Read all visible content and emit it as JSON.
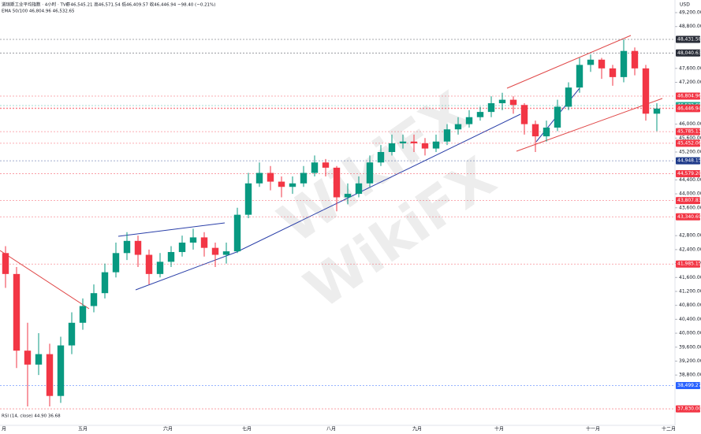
{
  "chart_data": {
    "type": "candlestick",
    "header": {
      "title": "道琼斯工业平均指数 · 4小时 · TVC",
      "ohlc": "开46,545.21 高46,571.54 低46,409.57 收46,446.94 −98.40 (−0.21%)"
    },
    "ema": "EMA 50/100  46,804.96  46,532.65",
    "rsi": "RSI (14, close)  44.90  36.68",
    "currency": "USD",
    "watermark": "WikiFX",
    "months": [
      "月",
      "五月",
      "六月",
      "七月",
      "八月",
      "九月",
      "十月",
      "十一月",
      "十二月"
    ],
    "up_color": "#089981",
    "down_color": "#f23645",
    "open": [
      42300,
      41700,
      39500,
      39100,
      39400,
      38200,
      39650,
      40300,
      40780,
      41150,
      41750,
      42300,
      42650,
      42250,
      41700,
      42050,
      42330,
      42600,
      42750,
      42450,
      42250,
      42350,
      43400,
      44300,
      44600,
      44350,
      44200,
      44300,
      44600,
      44900,
      44750,
      43900,
      44000,
      44300,
      44900,
      45200,
      45450,
      45500,
      45450,
      45300,
      45500,
      45850,
      46000,
      46200,
      46350,
      46600,
      46700,
      46550,
      46000,
      45650,
      45900,
      46500,
      47050,
      47700,
      47850,
      47600,
      47350,
      48100,
      47600,
      46300
    ],
    "high": [
      42500,
      41900,
      40300,
      40000,
      39700,
      39900,
      40600,
      41000,
      41400,
      42000,
      42600,
      42900,
      42800,
      42400,
      42300,
      42500,
      42800,
      43000,
      42900,
      42600,
      42600,
      43600,
      44600,
      44900,
      44800,
      44500,
      44500,
      44800,
      45100,
      45000,
      44800,
      44300,
      44500,
      45100,
      45400,
      45700,
      45700,
      45700,
      45600,
      45700,
      46000,
      46200,
      46400,
      46500,
      46800,
      46900,
      46800,
      46600,
      46100,
      46100,
      46700,
      47200,
      47900,
      48000,
      47900,
      47700,
      48431.58,
      48200,
      47700,
      46600
    ],
    "low": [
      41300,
      39000,
      37900,
      38800,
      37900,
      38000,
      39400,
      40100,
      40600,
      41000,
      41600,
      42100,
      41900,
      41400,
      41600,
      41900,
      42200,
      42400,
      42200,
      41900,
      42000,
      42300,
      43300,
      44200,
      44100,
      43900,
      44000,
      44200,
      44500,
      44500,
      43500,
      43700,
      43900,
      44200,
      44800,
      45100,
      45300,
      45200,
      45100,
      45200,
      45400,
      45700,
      45900,
      46100,
      46200,
      46400,
      46300,
      45700,
      45200,
      45500,
      45800,
      46400,
      46900,
      47500,
      47300,
      47100,
      47200,
      47400,
      46100,
      45800
    ],
    "close": [
      41700,
      39500,
      39100,
      39400,
      38200,
      39650,
      40300,
      40780,
      41150,
      41750,
      42300,
      42650,
      42250,
      41700,
      42050,
      42330,
      42600,
      42750,
      42450,
      42250,
      42350,
      43400,
      44300,
      44600,
      44350,
      44200,
      44300,
      44600,
      44900,
      44750,
      43900,
      44000,
      44300,
      44900,
      45200,
      45450,
      45500,
      45450,
      45300,
      45500,
      45850,
      46000,
      46200,
      46350,
      46600,
      46700,
      46550,
      46000,
      45650,
      45900,
      46500,
      47050,
      47700,
      47850,
      47600,
      47350,
      48100,
      47600,
      46300,
      46447
    ],
    "ylim": [
      37470,
      49562
    ],
    "yticks": [
      {
        "value": 49200,
        "label": "49,200.00"
      },
      {
        "value": 48800,
        "label": "48,800.00"
      },
      {
        "value": 47600,
        "label": "47,600.00"
      },
      {
        "value": 47200,
        "label": "47,200.00"
      },
      {
        "value": 46000,
        "label": "46,000.00"
      },
      {
        "value": 45600,
        "label": "45,600.00"
      },
      {
        "value": 45200,
        "label": "45,200.00"
      },
      {
        "value": 44400,
        "label": "44,400.00"
      },
      {
        "value": 44000,
        "label": "44,000.00"
      },
      {
        "value": 43600,
        "label": "43,600.00"
      },
      {
        "value": 42800,
        "label": "42,800.00"
      },
      {
        "value": 42400,
        "label": "42,400.00"
      },
      {
        "value": 42000,
        "label": "42,000.00"
      },
      {
        "value": 41600,
        "label": "41,600.00"
      },
      {
        "value": 41200,
        "label": "41,200.00"
      },
      {
        "value": 40800,
        "label": "40,800.00"
      },
      {
        "value": 40400,
        "label": "40,400.00"
      },
      {
        "value": 40000,
        "label": "40,000.00"
      },
      {
        "value": 39600,
        "label": "39,600.00"
      },
      {
        "value": 39200,
        "label": "39,200.00"
      },
      {
        "value": 38800,
        "label": "38,800.00"
      }
    ],
    "levels": [
      {
        "value": 48431.58,
        "label": "48,431.58",
        "color": "#2a2e39"
      },
      {
        "value": 48040.63,
        "label": "48,040.63",
        "color": "#2a2e39"
      },
      {
        "value": 46804.96,
        "label": "46,804.96",
        "color": "#f23645"
      },
      {
        "value": 46532.65,
        "label": "46,532.65",
        "color": "#22ab94"
      },
      {
        "value": 46461.5,
        "label": "46,461.50",
        "color": "#f23645"
      },
      {
        "value": 46446.94,
        "label": "46,446.94",
        "color": "#f23645"
      },
      {
        "value": 45785.13,
        "label": "45,785.13",
        "color": "#f23645"
      },
      {
        "value": 45452.06,
        "label": "45,452.06",
        "color": "#f23645"
      },
      {
        "value": 44948.15,
        "label": "44,948.15",
        "color": "#1e3a8a"
      },
      {
        "value": 44579.2,
        "label": "44,579.20",
        "color": "#f23645"
      },
      {
        "value": 43807.83,
        "label": "43,807.83",
        "color": "#f23645"
      },
      {
        "value": 43340.69,
        "label": "43,340.69",
        "color": "#f23645"
      },
      {
        "value": 41985.15,
        "label": "41,985.15",
        "color": "#f23645"
      },
      {
        "value": 38499.27,
        "label": "38,499.27",
        "color": "#2962ff"
      },
      {
        "value": 37830,
        "label": "37,830.00",
        "color": "#f23645"
      }
    ]
  }
}
